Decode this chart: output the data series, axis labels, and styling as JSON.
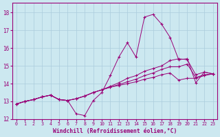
{
  "xlabel": "Windchill (Refroidissement éolien,°C)",
  "bg_color": "#cce8f0",
  "line_color": "#990077",
  "grid_color": "#aaccdd",
  "xlim": [
    -0.5,
    23.5
  ],
  "ylim": [
    12,
    18.55
  ],
  "xticks": [
    0,
    1,
    2,
    3,
    4,
    5,
    6,
    7,
    8,
    9,
    10,
    11,
    12,
    13,
    14,
    15,
    16,
    17,
    18,
    19,
    20,
    21,
    22,
    23
  ],
  "yticks": [
    12,
    13,
    14,
    15,
    16,
    17,
    18
  ],
  "series": [
    [
      12.85,
      13.0,
      13.1,
      13.25,
      13.35,
      13.1,
      13.05,
      12.3,
      12.2,
      13.05,
      13.5,
      14.45,
      15.5,
      16.3,
      15.5,
      17.75,
      17.9,
      17.35,
      16.6,
      15.35,
      15.4,
      14.05,
      14.65,
      14.55
    ],
    [
      12.85,
      13.0,
      13.1,
      13.25,
      13.35,
      13.1,
      13.05,
      13.15,
      13.3,
      13.5,
      13.65,
      13.85,
      14.05,
      14.3,
      14.45,
      14.7,
      14.85,
      15.0,
      15.3,
      15.4,
      15.35,
      14.5,
      14.65,
      14.55
    ],
    [
      12.85,
      13.0,
      13.1,
      13.25,
      13.35,
      13.1,
      13.05,
      13.15,
      13.3,
      13.5,
      13.65,
      13.8,
      13.95,
      14.1,
      14.25,
      14.45,
      14.6,
      14.8,
      14.95,
      14.95,
      15.1,
      14.35,
      14.5,
      14.55
    ],
    [
      12.85,
      13.0,
      13.1,
      13.25,
      13.35,
      13.1,
      13.05,
      13.15,
      13.3,
      13.5,
      13.65,
      13.8,
      13.9,
      14.0,
      14.1,
      14.25,
      14.35,
      14.5,
      14.6,
      14.2,
      14.3,
      14.3,
      14.45,
      14.55
    ]
  ]
}
